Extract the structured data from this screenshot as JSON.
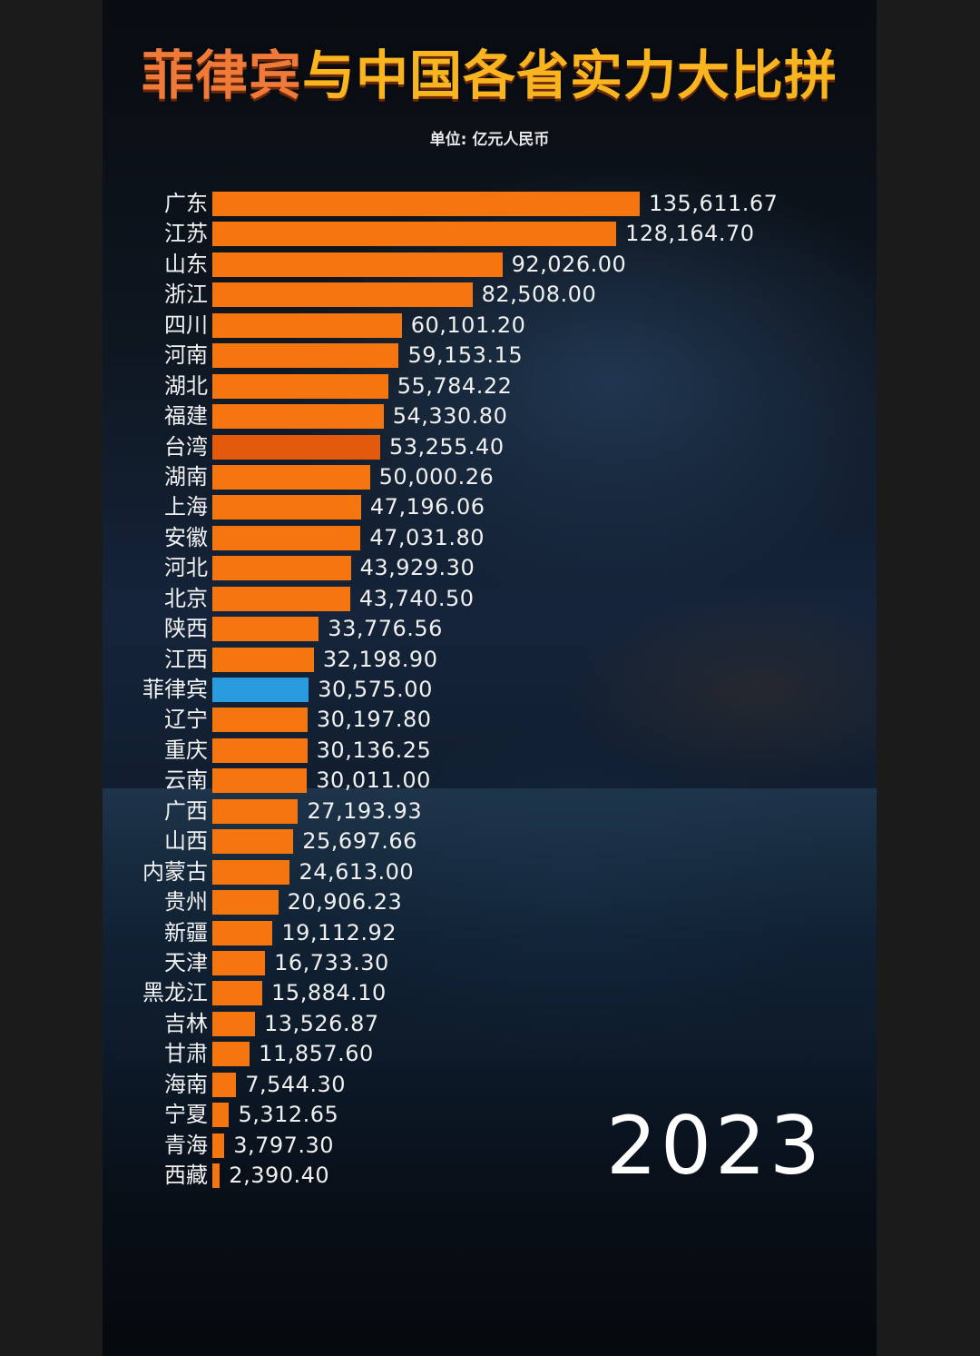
{
  "title": {
    "part1": "菲律宾",
    "part2": "与中国各省实力大比拼"
  },
  "subtitle": "单位: 亿元人民币",
  "year": "2023",
  "colors": {
    "bar": "#f5750f",
    "highlight": "#2b9be0",
    "taiwan": "#e35a0c"
  },
  "chart_data": {
    "type": "bar",
    "orientation": "horizontal",
    "title": "菲律宾与中国各省实力大比拼",
    "subtitle": "单位: 亿元人民币",
    "categories": [
      "广东",
      "江苏",
      "山东",
      "浙江",
      "四川",
      "河南",
      "湖北",
      "福建",
      "台湾",
      "湖南",
      "上海",
      "安徽",
      "河北",
      "北京",
      "陕西",
      "江西",
      "菲律宾",
      "辽宁",
      "重庆",
      "云南",
      "广西",
      "山西",
      "内蒙古",
      "贵州",
      "新疆",
      "天津",
      "黑龙江",
      "吉林",
      "甘肃",
      "海南",
      "宁夏",
      "青海",
      "西藏"
    ],
    "values": [
      135611.67,
      128164.7,
      92026.0,
      82508.0,
      60101.2,
      59153.15,
      55784.22,
      54330.8,
      53255.4,
      50000.26,
      47196.06,
      47031.8,
      43929.3,
      43740.5,
      33776.56,
      32198.9,
      30575.0,
      30197.8,
      30136.25,
      30011.0,
      27193.93,
      25697.66,
      24613.0,
      20906.23,
      19112.92,
      16733.3,
      15884.1,
      13526.87,
      11857.6,
      7544.3,
      5312.65,
      3797.3,
      2390.4
    ],
    "value_labels": [
      "135,611.67",
      "128,164.70",
      "92,026.00",
      "82,508.00",
      "60,101.20",
      "59,153.15",
      "55,784.22",
      "54,330.80",
      "53,255.40",
      "50,000.26",
      "47,196.06",
      "47,031.80",
      "43,929.30",
      "43,740.50",
      "33,776.56",
      "32,198.90",
      "30,575.00",
      "30,197.80",
      "30,136.25",
      "30,011.00",
      "27,193.93",
      "25,697.66",
      "24,613.00",
      "20,906.23",
      "19,112.92",
      "16,733.30",
      "15,884.10",
      "13,526.87",
      "11,857.60",
      "7,544.30",
      "5,312.65",
      "3,797.30",
      "2,390.40"
    ],
    "highlight": "菲律宾",
    "xlim": [
      0,
      135611.67
    ],
    "grid": false,
    "legend": "none"
  }
}
